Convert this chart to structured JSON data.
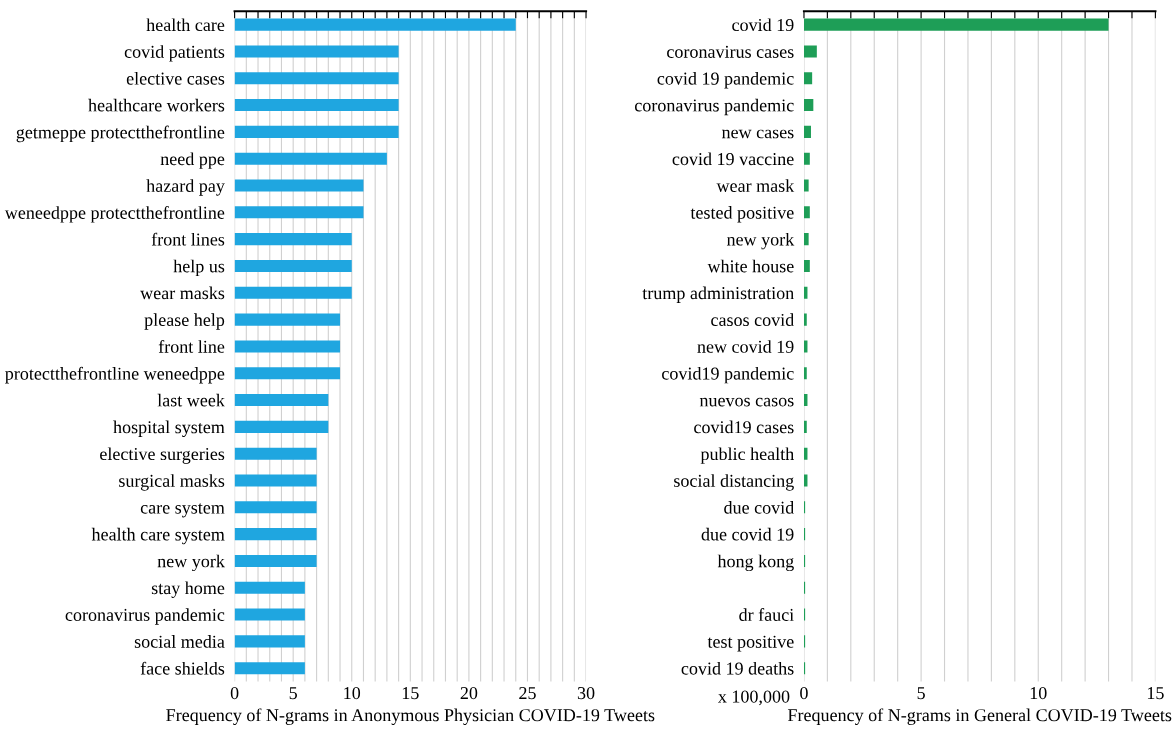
{
  "chart_data": [
    {
      "type": "bar",
      "orientation": "horizontal",
      "xlabel": "Frequency of N-grams in Anonymous Physician COVID-19 Tweets",
      "categories": [
        "health care",
        "covid patients",
        "elective cases",
        "healthcare workers",
        "getmeppe protectthefrontline",
        "need ppe",
        "hazard pay",
        "weneedppe protectthefrontline",
        "front lines",
        "help us",
        "wear masks",
        "please help",
        "front line",
        "protectthefrontline weneedppe",
        "last week",
        "hospital system",
        "elective surgeries",
        "surgical masks",
        "care system",
        "health care system",
        "new york",
        "stay home",
        "coronavirus pandemic",
        "social media",
        "face shields"
      ],
      "values": [
        24,
        14,
        14,
        14,
        14,
        13,
        11,
        11,
        10,
        10,
        10,
        9,
        9,
        9,
        8,
        8,
        7,
        7,
        7,
        7,
        7,
        6,
        6,
        6,
        6
      ],
      "color": "#1fa6e0",
      "xlim": [
        0,
        30
      ],
      "xticks": [
        0,
        {
          "value": 1,
          "label": null
        },
        {
          "value": 2,
          "label": null
        },
        {
          "value": 3,
          "label": null
        },
        {
          "value": 4,
          "label": null
        },
        5,
        {
          "value": 6,
          "label": null
        },
        {
          "value": 7,
          "label": null
        },
        {
          "value": 8,
          "label": null
        },
        {
          "value": 9,
          "label": null
        },
        10,
        {
          "value": 11,
          "label": null
        },
        {
          "value": 12,
          "label": null
        },
        {
          "value": 13,
          "label": null
        },
        {
          "value": 14,
          "label": null
        },
        15,
        {
          "value": 16,
          "label": null
        },
        {
          "value": 17,
          "label": null
        },
        {
          "value": 18,
          "label": null
        },
        {
          "value": 19,
          "label": null
        },
        20,
        {
          "value": 21,
          "label": null
        },
        {
          "value": 22,
          "label": null
        },
        {
          "value": 23,
          "label": null
        },
        {
          "value": 24,
          "label": null
        },
        25,
        {
          "value": 26,
          "label": null
        },
        {
          "value": 27,
          "label": null
        },
        {
          "value": 28,
          "label": null
        },
        {
          "value": 29,
          "label": null
        },
        30
      ],
      "grid": "x"
    },
    {
      "type": "bar",
      "orientation": "horizontal",
      "xlabel": "Frequency of N-grams in General COVID-19 Tweets",
      "categories": [
        "covid 19",
        "coronavirus cases",
        "covid 19 pandemic",
        "coronavirus pandemic",
        "new cases",
        "covid 19 vaccine",
        "wear mask",
        "tested positive",
        "new york",
        "white house",
        "trump administration",
        "casos covid",
        "new covid 19",
        "covid19 pandemic",
        "nuevos casos",
        "covid19 cases",
        "public health",
        "social distancing",
        "due covid",
        "due covid 19",
        "hong kong",
        null,
        "dr fauci",
        "test positive",
        "covid 19 deaths"
      ],
      "values": [
        13,
        0.55,
        0.35,
        0.4,
        0.3,
        0.25,
        0.2,
        0.25,
        0.2,
        0.25,
        0.15,
        0.12,
        0.15,
        0.12,
        0.15,
        0.12,
        0.15,
        0.15,
        0.05,
        0.05,
        0.05,
        0.05,
        0.05,
        0.05,
        0.05
      ],
      "color": "#1e9e57",
      "xlim": [
        0,
        15
      ],
      "xticks": [
        0,
        {
          "value": 1,
          "label": null
        },
        {
          "value": 2,
          "label": null
        },
        {
          "value": 3,
          "label": null
        },
        {
          "value": 4,
          "label": null
        },
        5,
        {
          "value": 6,
          "label": null
        },
        {
          "value": 7,
          "label": null
        },
        {
          "value": 8,
          "label": null
        },
        {
          "value": 9,
          "label": null
        },
        10,
        {
          "value": 11,
          "label": null
        },
        {
          "value": 12,
          "label": null
        },
        {
          "value": 13,
          "label": null
        },
        {
          "value": 14,
          "label": null
        },
        15
      ],
      "annotations": [
        "x 100,000"
      ],
      "grid": "x"
    }
  ]
}
